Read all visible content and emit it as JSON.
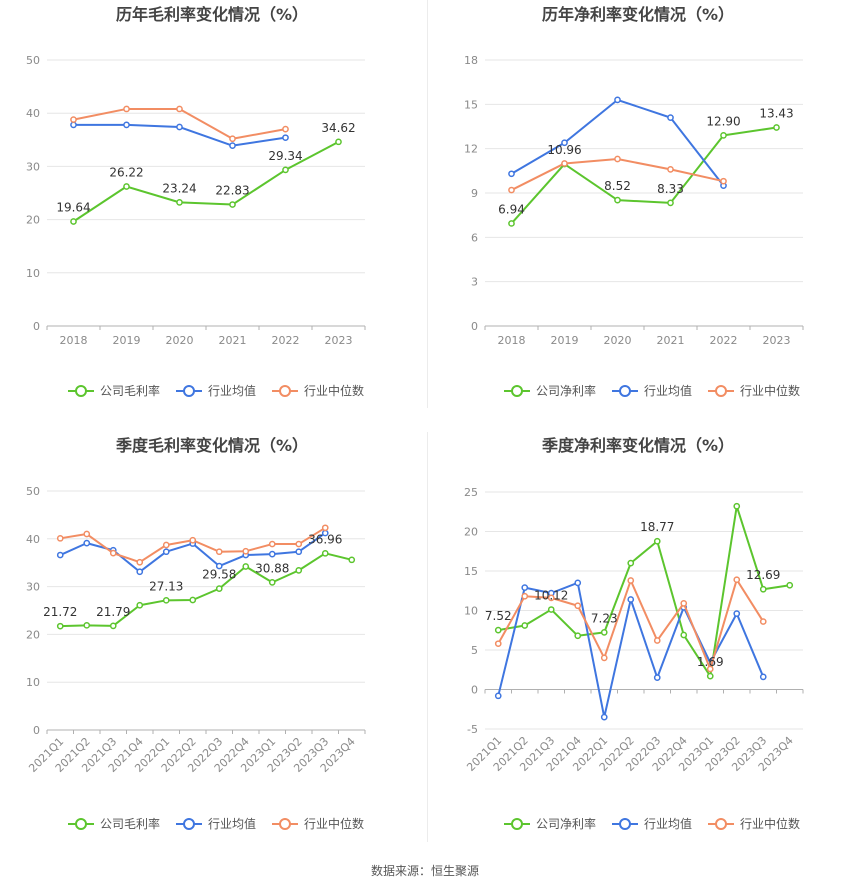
{
  "source": "数据来源：恒生聚源",
  "colors": {
    "company": "#5cc52e",
    "industry_avg": "#3f76e0",
    "industry_median": "#f28d63",
    "grid": "#e6e6e6",
    "axis_text": "#8a8a8a",
    "title": "#444444"
  },
  "chart_data": [
    {
      "id": "annual-gross",
      "type": "line",
      "title": "历年毛利率变化情况（%）",
      "categories": [
        "2018",
        "2019",
        "2020",
        "2021",
        "2022",
        "2023"
      ],
      "ylim": [
        0,
        50
      ],
      "yticks": [
        0,
        10,
        20,
        30,
        40,
        50
      ],
      "series": [
        {
          "name": "公司毛利率",
          "role": "company",
          "values": [
            19.64,
            26.22,
            23.24,
            22.83,
            29.34,
            34.62
          ],
          "labels": [
            "19.64",
            "26.22",
            "23.24",
            "22.83",
            "29.34",
            "34.62"
          ]
        },
        {
          "name": "行业均值",
          "role": "industry_avg",
          "values": [
            37.8,
            37.8,
            37.4,
            33.9,
            35.4,
            null
          ]
        },
        {
          "name": "行业中位数",
          "role": "industry_median",
          "values": [
            38.8,
            40.8,
            40.8,
            35.2,
            37.0,
            null
          ]
        }
      ]
    },
    {
      "id": "annual-net",
      "type": "line",
      "title": "历年净利率变化情况（%）",
      "categories": [
        "2018",
        "2019",
        "2020",
        "2021",
        "2022",
        "2023"
      ],
      "ylim": [
        0,
        18
      ],
      "yticks": [
        0,
        3,
        6,
        9,
        12,
        15,
        18
      ],
      "series": [
        {
          "name": "公司净利率",
          "role": "company",
          "values": [
            6.94,
            10.96,
            8.52,
            8.33,
            12.9,
            13.43
          ],
          "labels": [
            "6.94",
            "10.96",
            "8.52",
            "8.33",
            "12.90",
            "13.43"
          ]
        },
        {
          "name": "行业均值",
          "role": "industry_avg",
          "values": [
            10.3,
            12.4,
            15.3,
            14.1,
            9.5,
            null
          ]
        },
        {
          "name": "行业中位数",
          "role": "industry_median",
          "values": [
            9.2,
            11.0,
            11.3,
            10.6,
            9.8,
            null
          ]
        }
      ]
    },
    {
      "id": "quarterly-gross",
      "type": "line",
      "title": "季度毛利率变化情况（%）",
      "categories": [
        "2021Q1",
        "2021Q2",
        "2021Q3",
        "2021Q4",
        "2022Q1",
        "2022Q2",
        "2022Q3",
        "2022Q4",
        "2023Q1",
        "2023Q2",
        "2023Q3",
        "2023Q4"
      ],
      "ylim": [
        0,
        50
      ],
      "yticks": [
        0,
        10,
        20,
        30,
        40,
        50
      ],
      "series": [
        {
          "name": "公司毛利率",
          "role": "company",
          "values": [
            21.72,
            21.9,
            21.79,
            26.1,
            27.13,
            27.2,
            29.58,
            34.2,
            30.88,
            33.4,
            36.96,
            35.6
          ],
          "labels": [
            "21.72",
            null,
            "21.79",
            null,
            "27.13",
            null,
            "29.58",
            null,
            "30.88",
            null,
            "36.96",
            null
          ]
        },
        {
          "name": "行业均值",
          "role": "industry_avg",
          "values": [
            36.6,
            39.1,
            37.6,
            33.1,
            37.3,
            39.0,
            34.3,
            36.6,
            36.8,
            37.3,
            41.2,
            null
          ]
        },
        {
          "name": "行业中位数",
          "role": "industry_median",
          "values": [
            40.1,
            41.0,
            37.0,
            35.1,
            38.7,
            39.7,
            37.3,
            37.4,
            38.9,
            38.9,
            42.3,
            null
          ]
        }
      ]
    },
    {
      "id": "quarterly-net",
      "type": "line",
      "title": "季度净利率变化情况（%）",
      "categories": [
        "2021Q1",
        "2021Q2",
        "2021Q3",
        "2021Q4",
        "2022Q1",
        "2022Q2",
        "2022Q3",
        "2022Q4",
        "2023Q1",
        "2023Q2",
        "2023Q3",
        "2023Q4"
      ],
      "ylim": [
        -5,
        25
      ],
      "yticks": [
        -5,
        0,
        5,
        10,
        15,
        20,
        25
      ],
      "series": [
        {
          "name": "公司净利率",
          "role": "company",
          "values": [
            7.52,
            8.1,
            10.12,
            6.8,
            7.23,
            16.0,
            18.77,
            6.9,
            1.69,
            23.2,
            12.69,
            13.2
          ],
          "labels": [
            "7.52",
            null,
            "10.12",
            null,
            "7.23",
            null,
            "18.77",
            null,
            "1.69",
            null,
            "12.69",
            null
          ]
        },
        {
          "name": "行业均值",
          "role": "industry_avg",
          "values": [
            -0.8,
            12.9,
            12.2,
            13.5,
            -3.5,
            11.4,
            1.5,
            10.4,
            3.4,
            9.6,
            1.6,
            null
          ]
        },
        {
          "name": "行业中位数",
          "role": "industry_median",
          "values": [
            5.8,
            11.8,
            11.6,
            10.6,
            4.0,
            13.8,
            6.2,
            10.9,
            2.6,
            13.9,
            8.6,
            null
          ]
        }
      ]
    }
  ]
}
